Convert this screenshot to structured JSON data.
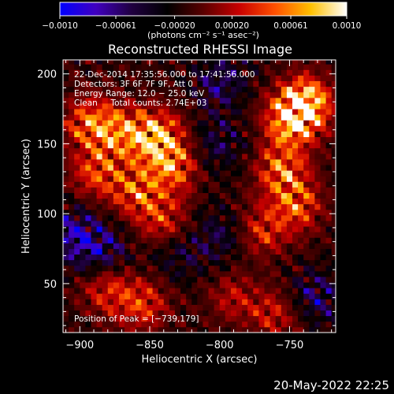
{
  "chart_data": {
    "type": "heatmap",
    "title": "Reconstructed RHESSI Image",
    "xlabel": "Heliocentric X (arcsec)",
    "ylabel": "Heliocentric Y (arcsec)",
    "xlim": [
      -912,
      -717
    ],
    "ylim": [
      15,
      210
    ],
    "x_ticks": [
      -900,
      -850,
      -800,
      -750
    ],
    "x_tick_labels": [
      "−900",
      "−850",
      "−800",
      "−750"
    ],
    "y_ticks": [
      50,
      100,
      150,
      200
    ],
    "y_tick_labels": [
      "50",
      "100",
      "150",
      "200"
    ],
    "colorbar": {
      "range": [
        -0.001,
        0.001
      ],
      "tick_values": [
        -0.001,
        -0.00061,
        -0.0002,
        0.0002,
        0.00061,
        0.001
      ],
      "tick_labels": [
        "−0.0010",
        "−0.00061",
        "−0.00020",
        "0.00020",
        "0.00061",
        "0.0010"
      ],
      "units_label": "(photons cm⁻² s⁻¹ asec⁻²)",
      "colormap": [
        "#0000ff",
        "#4000c0",
        "#200040",
        "#000000",
        "#5a0000",
        "#c80000",
        "#ff5000",
        "#ffc000",
        "#ffffff"
      ]
    },
    "annotations": [
      "22-Dec-2014 17:35:56.000 to 17:41:56.000",
      "Detectors: 3F 6F 7F 9F, Att 0",
      "Energy Range: 12.0 − 25.0 keV",
      "Clean     Total counts: 2.74E+03"
    ],
    "peak_label": "Position of Peak = [−739,179]",
    "peak": [
      -739,
      179
    ],
    "bright_regions": [
      {
        "x": -893,
        "y": 165,
        "value": 0.0006
      },
      {
        "x": -870,
        "y": 158,
        "value": 0.00055
      },
      {
        "x": -845,
        "y": 155,
        "value": 0.0008
      },
      {
        "x": -835,
        "y": 133,
        "value": 0.0006
      },
      {
        "x": -888,
        "y": 130,
        "value": 0.0005
      },
      {
        "x": -860,
        "y": 115,
        "value": 0.0005
      },
      {
        "x": -840,
        "y": 95,
        "value": 0.0004
      },
      {
        "x": -880,
        "y": 45,
        "value": 0.0004
      },
      {
        "x": -855,
        "y": 35,
        "value": 0.00045
      },
      {
        "x": -739,
        "y": 179,
        "value": 0.001
      },
      {
        "x": -750,
        "y": 165,
        "value": 0.0007
      },
      {
        "x": -755,
        "y": 130,
        "value": 0.0006
      },
      {
        "x": -745,
        "y": 105,
        "value": 0.0005
      },
      {
        "x": -770,
        "y": 88,
        "value": 0.0004
      },
      {
        "x": -790,
        "y": 40,
        "value": 0.0003
      },
      {
        "x": -760,
        "y": 28,
        "value": 0.00035
      }
    ],
    "dim_regions": [
      {
        "x": -800,
        "y": 195,
        "value": -0.0004
      },
      {
        "x": -800,
        "y": 150,
        "value": -0.0003
      },
      {
        "x": -905,
        "y": 85,
        "value": -0.0005
      },
      {
        "x": -885,
        "y": 75,
        "value": -0.0004
      },
      {
        "x": -800,
        "y": 85,
        "value": -0.0003
      },
      {
        "x": -730,
        "y": 40,
        "value": -0.0004
      },
      {
        "x": -830,
        "y": 70,
        "value": -0.00025
      }
    ]
  },
  "footer": {
    "timestamp": "20-May-2022 22:25"
  }
}
